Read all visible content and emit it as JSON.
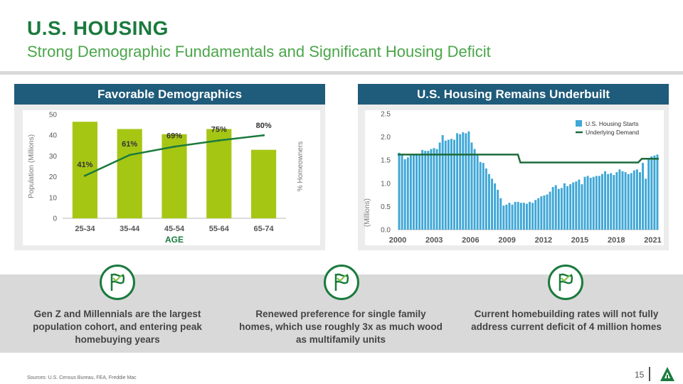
{
  "header": {
    "title": "U.S. HOUSING",
    "subtitle": "Strong Demographic Fundamentals and Significant Housing Deficit"
  },
  "left_panel": {
    "title": "Favorable Demographics"
  },
  "right_panel": {
    "title": "U.S. Housing Remains Underbuilt"
  },
  "chart_data": [
    {
      "type": "bar",
      "categories": [
        "25-34",
        "35-44",
        "45-54",
        "55-64",
        "65-74"
      ],
      "series": [
        {
          "values": [
            46.5,
            43,
            40.5,
            43,
            33
          ],
          "color": "#a6c614"
        }
      ],
      "line_series": {
        "values": [
          41,
          61,
          69,
          75,
          80
        ],
        "labels": [
          "41%",
          "61%",
          "69%",
          "75%",
          "80%"
        ],
        "color": "#1b7a3e"
      },
      "xlabel": "AGE",
      "ylabel": "Population (Millions)",
      "y2label": "% Homeowners",
      "ylim": [
        0,
        50
      ],
      "yticks": [
        "0",
        "10",
        "20",
        "30",
        "40",
        "50"
      ]
    },
    {
      "type": "bar",
      "xlabel": "",
      "ylabel": "(Millions)",
      "ylim": [
        0,
        2.5
      ],
      "yticks": [
        "0.0",
        "0.5",
        "1.0",
        "1.5",
        "2.0",
        "2.5"
      ],
      "xtick_labels": [
        "2000",
        "2003",
        "2006",
        "2009",
        "2012",
        "2015",
        "2018",
        "2021"
      ],
      "legend": {
        "position": "top-right",
        "starts": "U.S. Housing Starts",
        "demand": "Underlying Demand"
      },
      "colors": {
        "starts": "#3fa7d6",
        "demand": "#1b6b3a"
      },
      "starts_values": [
        1.66,
        1.62,
        1.52,
        1.56,
        1.6,
        1.62,
        1.64,
        1.6,
        1.72,
        1.7,
        1.7,
        1.74,
        1.76,
        1.74,
        1.88,
        2.04,
        1.92,
        1.94,
        1.96,
        1.94,
        2.08,
        2.06,
        2.1,
        2.08,
        2.12,
        1.88,
        1.74,
        1.6,
        1.46,
        1.44,
        1.32,
        1.2,
        1.1,
        1.0,
        0.86,
        0.68,
        0.52,
        0.54,
        0.58,
        0.54,
        0.6,
        0.6,
        0.58,
        0.58,
        0.56,
        0.6,
        0.58,
        0.64,
        0.68,
        0.72,
        0.74,
        0.76,
        0.82,
        0.92,
        0.96,
        0.88,
        0.9,
        1.0,
        0.94,
        0.98,
        1.02,
        1.04,
        1.08,
        0.98,
        1.14,
        1.16,
        1.12,
        1.14,
        1.16,
        1.16,
        1.2,
        1.26,
        1.2,
        1.22,
        1.18,
        1.24,
        1.3,
        1.26,
        1.24,
        1.2,
        1.22,
        1.28,
        1.3,
        1.24,
        1.44,
        1.1,
        1.52,
        1.58,
        1.6,
        1.62
      ],
      "demand_values": [
        {
          "x": 2000,
          "y": 1.62
        },
        {
          "x": 2009.9,
          "y": 1.62
        },
        {
          "x": 2010.1,
          "y": 1.45
        },
        {
          "x": 2019.8,
          "y": 1.45
        },
        {
          "x": 2020.1,
          "y": 1.53
        },
        {
          "x": 2021.5,
          "y": 1.53
        }
      ]
    }
  ],
  "captions": [
    "Gen Z and Millennials are the largest population cohort, and entering peak homebuying years",
    "Renewed preference for single family homes, which use roughly 3x as much wood as multifamily units",
    "Current homebuilding rates will not fully address current deficit of 4 million homes"
  ],
  "icons": [
    "flag-icon",
    "flag-icon",
    "flag-icon",
    "logo-icon"
  ],
  "footer": {
    "sources": "Sources: U.S. Census Bureau, FEA, Freddie Mac",
    "page_number": "15"
  }
}
